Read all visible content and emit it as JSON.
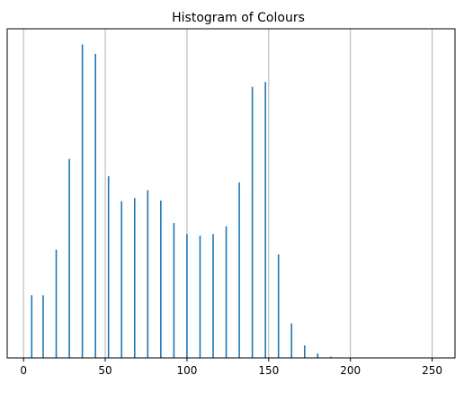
{
  "chart_data": {
    "type": "bar",
    "title": "Histogram of Colours",
    "xlabel": "",
    "ylabel": "",
    "xlim": [
      -10,
      264
    ],
    "ylim": [
      0,
      1050
    ],
    "x_ticks": [
      0,
      50,
      100,
      150,
      200,
      250
    ],
    "x_tick_labels": [
      "0",
      "50",
      "100",
      "150",
      "200",
      "250"
    ],
    "grid": {
      "x": true,
      "y": false
    },
    "legend": "none",
    "series": [
      {
        "x": [
          5,
          12,
          20,
          28,
          36,
          44,
          52,
          60,
          68,
          76,
          84,
          92,
          100,
          108,
          116,
          124,
          132,
          140,
          148,
          156,
          164,
          172,
          180,
          188
        ],
        "values": [
          200,
          200,
          345,
          635,
          1000,
          970,
          580,
          500,
          510,
          535,
          502,
          430,
          395,
          390,
          395,
          420,
          560,
          865,
          880,
          330,
          110,
          40,
          14,
          4
        ]
      }
    ],
    "colors": {
      "bar": "#1f77b4",
      "grid": "#b0b0b0",
      "axes": "#000000"
    }
  }
}
